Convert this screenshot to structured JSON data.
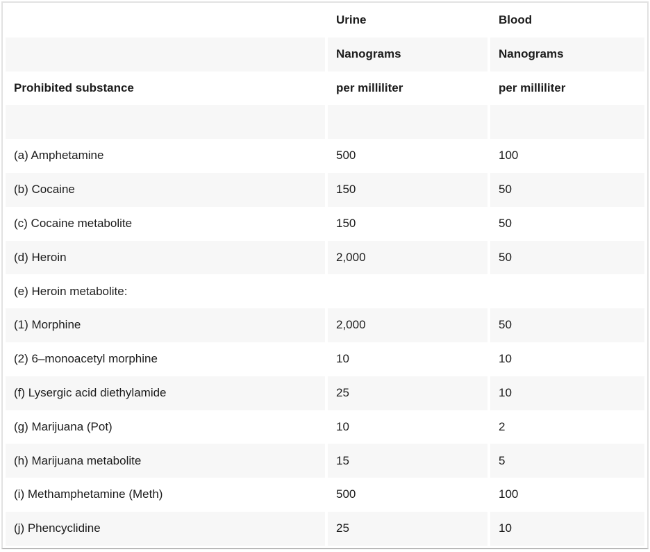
{
  "colors": {
    "stripe_row_background": "#f7f7f7",
    "table_border": "#e2e2e2",
    "table_border_bottom": "#b9b9b9",
    "text": "#1c1c1c"
  },
  "table": {
    "header_rows": [
      {
        "substance": "",
        "urine": "Urine",
        "blood": "Blood"
      },
      {
        "substance": "",
        "urine": "Nanograms",
        "blood": "Nanograms"
      },
      {
        "substance": "Prohibited substance",
        "urine": "per milliliter",
        "blood": "per milliliter"
      },
      {
        "substance": "",
        "urine": "",
        "blood": ""
      }
    ],
    "rows": [
      {
        "substance": "(a) Amphetamine",
        "urine": "500",
        "blood": "100"
      },
      {
        "substance": "(b) Cocaine",
        "urine": "150",
        "blood": "50"
      },
      {
        "substance": "(c) Cocaine metabolite",
        "urine": "150",
        "blood": "50"
      },
      {
        "substance": "(d) Heroin",
        "urine": "2,000",
        "blood": "50"
      },
      {
        "substance": "(e) Heroin metabolite:",
        "urine": "",
        "blood": ""
      },
      {
        "substance": "(1) Morphine",
        "urine": "2,000",
        "blood": "50"
      },
      {
        "substance": "(2) 6–monoacetyl morphine",
        "urine": "10",
        "blood": "10"
      },
      {
        "substance": "(f) Lysergic acid diethylamide",
        "urine": "25",
        "blood": "10"
      },
      {
        "substance": "(g) Marijuana (Pot)",
        "urine": "10",
        "blood": "2"
      },
      {
        "substance": "(h) Marijuana metabolite",
        "urine": "15",
        "blood": "5"
      },
      {
        "substance": "(i) Methamphetamine (Meth)",
        "urine": "500",
        "blood": "100"
      },
      {
        "substance": "(j) Phencyclidine",
        "urine": "25",
        "blood": "10"
      }
    ]
  }
}
